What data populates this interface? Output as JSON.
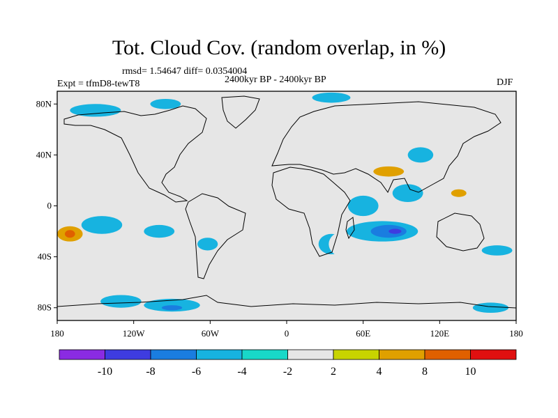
{
  "title": "Tot. Cloud Cov. (random overlap, in %)",
  "stats_text": "rmsd= 1.54647 diff= 0.0354004",
  "period_text": "2400kyr BP - 2400kyr BP",
  "experiment_text": "Expt = tfmD8-tewT8",
  "season": "DJF",
  "map": {
    "projection": "cylindrical-equidistant",
    "lon_range": [
      -180,
      180
    ],
    "lat_range": [
      -90,
      90
    ],
    "x_ticks": [
      {
        "lon": -180,
        "label": "180"
      },
      {
        "lon": -120,
        "label": "120W"
      },
      {
        "lon": -60,
        "label": "60W"
      },
      {
        "lon": 0,
        "label": "0"
      },
      {
        "lon": 60,
        "label": "60E"
      },
      {
        "lon": 120,
        "label": "120E"
      },
      {
        "lon": 180,
        "label": "180"
      }
    ],
    "y_ticks": [
      {
        "lat": 80,
        "label": "80N"
      },
      {
        "lat": 40,
        "label": "40N"
      },
      {
        "lat": 0,
        "label": "0"
      },
      {
        "lat": -40,
        "label": "40S"
      },
      {
        "lat": -80,
        "label": "80S"
      }
    ],
    "background_color": "#e6e6e6",
    "anomalies": [
      {
        "lon": -170,
        "lat": -22,
        "rx": 10,
        "ry": 6,
        "level": 3
      },
      {
        "lon": -170,
        "lat": -22,
        "rx": 4,
        "ry": 3,
        "level": 4
      },
      {
        "lon": -145,
        "lat": -15,
        "rx": 16,
        "ry": 7,
        "level": -2
      },
      {
        "lon": -140,
        "lat": -32,
        "rx": 16,
        "ry": 4,
        "level": 1
      },
      {
        "lon": -165,
        "lat": 2,
        "rx": 10,
        "ry": 2,
        "level": 1
      },
      {
        "lon": -150,
        "lat": 75,
        "rx": 20,
        "ry": 5,
        "level": -2
      },
      {
        "lon": -115,
        "lat": 85,
        "rx": 12,
        "ry": 3,
        "level": 1
      },
      {
        "lon": -95,
        "lat": 80,
        "rx": 12,
        "ry": 4,
        "level": -2
      },
      {
        "lon": -100,
        "lat": 52,
        "rx": 10,
        "ry": 4,
        "level": 1
      },
      {
        "lon": -110,
        "lat": 20,
        "rx": 10,
        "ry": 5,
        "level": 1
      },
      {
        "lon": -100,
        "lat": -20,
        "rx": 12,
        "ry": 5,
        "level": -2
      },
      {
        "lon": -80,
        "lat": 30,
        "rx": 10,
        "ry": 3,
        "level": 1
      },
      {
        "lon": -75,
        "lat": 3,
        "rx": 12,
        "ry": 5,
        "level": 1
      },
      {
        "lon": -62,
        "lat": -30,
        "rx": 8,
        "ry": 5,
        "level": -2
      },
      {
        "lon": -40,
        "lat": -45,
        "rx": 22,
        "ry": 6,
        "level": 1
      },
      {
        "lon": -45,
        "lat": 20,
        "rx": 10,
        "ry": 4,
        "level": 1
      },
      {
        "lon": -15,
        "lat": 5,
        "rx": 14,
        "ry": 5,
        "level": 1
      },
      {
        "lon": -5,
        "lat": 70,
        "rx": 14,
        "ry": 5,
        "level": 1
      },
      {
        "lon": 35,
        "lat": 85,
        "rx": 15,
        "ry": 4,
        "level": -2
      },
      {
        "lon": 30,
        "lat": -10,
        "rx": 10,
        "ry": 7,
        "level": 1
      },
      {
        "lon": 35,
        "lat": -30,
        "rx": 10,
        "ry": 8,
        "level": -2
      },
      {
        "lon": 42,
        "lat": -28,
        "rx": 7,
        "ry": 5,
        "level": 3
      },
      {
        "lon": 45,
        "lat": -30,
        "rx": 12,
        "ry": 10,
        "level": 1
      },
      {
        "lon": 60,
        "lat": 0,
        "rx": 12,
        "ry": 8,
        "level": -2
      },
      {
        "lon": 75,
        "lat": -20,
        "rx": 28,
        "ry": 8,
        "level": -2
      },
      {
        "lon": 80,
        "lat": -20,
        "rx": 14,
        "ry": 5,
        "level": -3
      },
      {
        "lon": 85,
        "lat": -20,
        "rx": 5,
        "ry": 2,
        "level": -4
      },
      {
        "lon": 70,
        "lat": 30,
        "rx": 30,
        "ry": 8,
        "level": 1
      },
      {
        "lon": 80,
        "lat": 27,
        "rx": 12,
        "ry": 4,
        "level": 3
      },
      {
        "lon": 95,
        "lat": 10,
        "rx": 12,
        "ry": 7,
        "level": -2
      },
      {
        "lon": 105,
        "lat": 40,
        "rx": 10,
        "ry": 6,
        "level": -2
      },
      {
        "lon": 125,
        "lat": 10,
        "rx": 16,
        "ry": 5,
        "level": 1
      },
      {
        "lon": 135,
        "lat": 10,
        "rx": 6,
        "ry": 3,
        "level": 3
      },
      {
        "lon": 155,
        "lat": 25,
        "rx": 10,
        "ry": 3,
        "level": 1
      },
      {
        "lon": 155,
        "lat": -15,
        "rx": 14,
        "ry": 5,
        "level": 1
      },
      {
        "lon": 165,
        "lat": -35,
        "rx": 12,
        "ry": 4,
        "level": -2
      },
      {
        "lon": 110,
        "lat": 80,
        "rx": 16,
        "ry": 4,
        "level": 1
      },
      {
        "lon": -165,
        "lat": -55,
        "rx": 14,
        "ry": 4,
        "level": 1
      },
      {
        "lon": -130,
        "lat": -75,
        "rx": 16,
        "ry": 5,
        "level": -2
      },
      {
        "lon": -90,
        "lat": -78,
        "rx": 22,
        "ry": 5,
        "level": -2
      },
      {
        "lon": -90,
        "lat": -80,
        "rx": 8,
        "ry": 2,
        "level": -3
      },
      {
        "lon": -50,
        "lat": -60,
        "rx": 10,
        "ry": 4,
        "level": 1
      },
      {
        "lon": 0,
        "lat": -68,
        "rx": 12,
        "ry": 4,
        "level": 1
      },
      {
        "lon": 50,
        "lat": -75,
        "rx": 14,
        "ry": 4,
        "level": 1
      },
      {
        "lon": 95,
        "lat": -62,
        "rx": 14,
        "ry": 4,
        "level": 1
      },
      {
        "lon": 130,
        "lat": -75,
        "rx": 10,
        "ry": 4,
        "level": 1
      },
      {
        "lon": 160,
        "lat": -80,
        "rx": 14,
        "ry": 4,
        "level": -2
      }
    ]
  },
  "colorbar": {
    "colors": [
      "#8a2be2",
      "#3e3ce0",
      "#1a7de0",
      "#17b3e0",
      "#18d8c8",
      "#e6e6e6",
      "#c8d400",
      "#e0a000",
      "#e06000",
      "#e01010"
    ],
    "labels": [
      "-10",
      "-8",
      "-6",
      "-4",
      "-2",
      "2",
      "4",
      "8",
      "10"
    ]
  }
}
